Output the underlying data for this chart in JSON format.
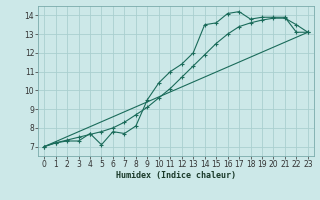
{
  "background_color": "#cce8e8",
  "grid_color": "#aacfcf",
  "line_color": "#1a6b5a",
  "xlabel": "Humidex (Indice chaleur)",
  "xlim": [
    -0.5,
    23.5
  ],
  "ylim": [
    6.5,
    14.5
  ],
  "xticks": [
    0,
    1,
    2,
    3,
    4,
    5,
    6,
    7,
    8,
    9,
    10,
    11,
    12,
    13,
    14,
    15,
    16,
    17,
    18,
    19,
    20,
    21,
    22,
    23
  ],
  "yticks": [
    7,
    8,
    9,
    10,
    11,
    12,
    13,
    14
  ],
  "curve_jagged_x": [
    0,
    1,
    2,
    3,
    4,
    5,
    6,
    7,
    8,
    9,
    10,
    11,
    12,
    13,
    14,
    15,
    16,
    17,
    18,
    19,
    20,
    21,
    22,
    23
  ],
  "curve_jagged_y": [
    7.0,
    7.2,
    7.3,
    7.3,
    7.7,
    7.1,
    7.8,
    7.7,
    8.1,
    9.5,
    10.4,
    11.0,
    11.4,
    12.0,
    13.5,
    13.6,
    14.1,
    14.2,
    13.8,
    13.9,
    13.9,
    13.9,
    13.1,
    13.1
  ],
  "curve_smooth_x": [
    0,
    1,
    2,
    3,
    4,
    5,
    6,
    7,
    8,
    9,
    10,
    11,
    12,
    13,
    14,
    15,
    16,
    17,
    18,
    19,
    20,
    21,
    22,
    23
  ],
  "curve_smooth_y": [
    7.0,
    7.2,
    7.35,
    7.5,
    7.65,
    7.8,
    8.0,
    8.3,
    8.7,
    9.1,
    9.6,
    10.1,
    10.7,
    11.3,
    11.9,
    12.5,
    13.0,
    13.4,
    13.6,
    13.75,
    13.85,
    13.85,
    13.5,
    13.1
  ],
  "line_x": [
    0,
    23
  ],
  "line_y": [
    7.0,
    13.1
  ]
}
